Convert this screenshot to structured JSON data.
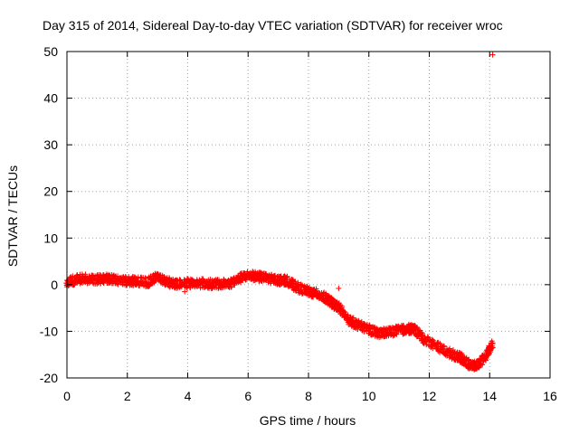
{
  "chart_data": {
    "type": "scatter",
    "title": "Day 315 of 2014, Sidereal Day-to-day VTEC variation (SDTVAR) for receiver wroc",
    "xlabel": "GPS time / hours",
    "ylabel": "SDTVAR / TECUs",
    "xlim": [
      0,
      16
    ],
    "ylim": [
      -20,
      50
    ],
    "x_ticks": [
      0,
      2,
      4,
      6,
      8,
      10,
      12,
      14,
      16
    ],
    "y_ticks": [
      -20,
      -10,
      0,
      10,
      20,
      30,
      40,
      50
    ],
    "x_tick_labels": [
      "0",
      "2",
      "4",
      "6",
      "8",
      "10",
      "12",
      "14",
      "16"
    ],
    "y_tick_labels": [
      "-20",
      "-10",
      "0",
      "10",
      "20",
      "30",
      "40",
      "50"
    ],
    "grid": true,
    "marker": "plus",
    "series": [
      {
        "name": "SDTVAR",
        "color": "#ff0000",
        "spread": 1.0,
        "points": [
          [
            0.0,
            0.2
          ],
          [
            0.3,
            1.2
          ],
          [
            0.6,
            1.3
          ],
          [
            1.0,
            1.1
          ],
          [
            1.3,
            1.3
          ],
          [
            1.6,
            1.0
          ],
          [
            2.0,
            0.8
          ],
          [
            2.3,
            0.7
          ],
          [
            2.7,
            0.5
          ],
          [
            3.0,
            1.8
          ],
          [
            3.3,
            0.6
          ],
          [
            3.6,
            0.2
          ],
          [
            4.0,
            0.3
          ],
          [
            4.3,
            0.4
          ],
          [
            4.7,
            0.2
          ],
          [
            5.0,
            0.1
          ],
          [
            5.4,
            0.3
          ],
          [
            5.7,
            1.3
          ],
          [
            6.0,
            2.0
          ],
          [
            6.3,
            1.8
          ],
          [
            6.6,
            1.4
          ],
          [
            7.0,
            1.0
          ],
          [
            7.3,
            0.8
          ],
          [
            7.6,
            -0.5
          ],
          [
            8.0,
            -1.5
          ],
          [
            8.3,
            -2.0
          ],
          [
            8.6,
            -3.0
          ],
          [
            8.8,
            -4.0
          ],
          [
            9.0,
            -4.8
          ],
          [
            9.3,
            -7.5
          ],
          [
            9.6,
            -8.5
          ],
          [
            10.0,
            -9.5
          ],
          [
            10.3,
            -10.5
          ],
          [
            10.6,
            -10.2
          ],
          [
            11.0,
            -9.8
          ],
          [
            11.3,
            -9.5
          ],
          [
            11.5,
            -9.5
          ],
          [
            11.8,
            -11.5
          ],
          [
            12.2,
            -13.0
          ],
          [
            12.6,
            -14.5
          ],
          [
            13.0,
            -15.5
          ],
          [
            13.3,
            -17.0
          ],
          [
            13.5,
            -17.5
          ],
          [
            13.8,
            -16.0
          ],
          [
            14.1,
            -12.5
          ]
        ],
        "outliers": [
          [
            3.9,
            -1.5
          ],
          [
            9.0,
            -0.8
          ],
          [
            14.1,
            49.3
          ]
        ]
      }
    ]
  }
}
